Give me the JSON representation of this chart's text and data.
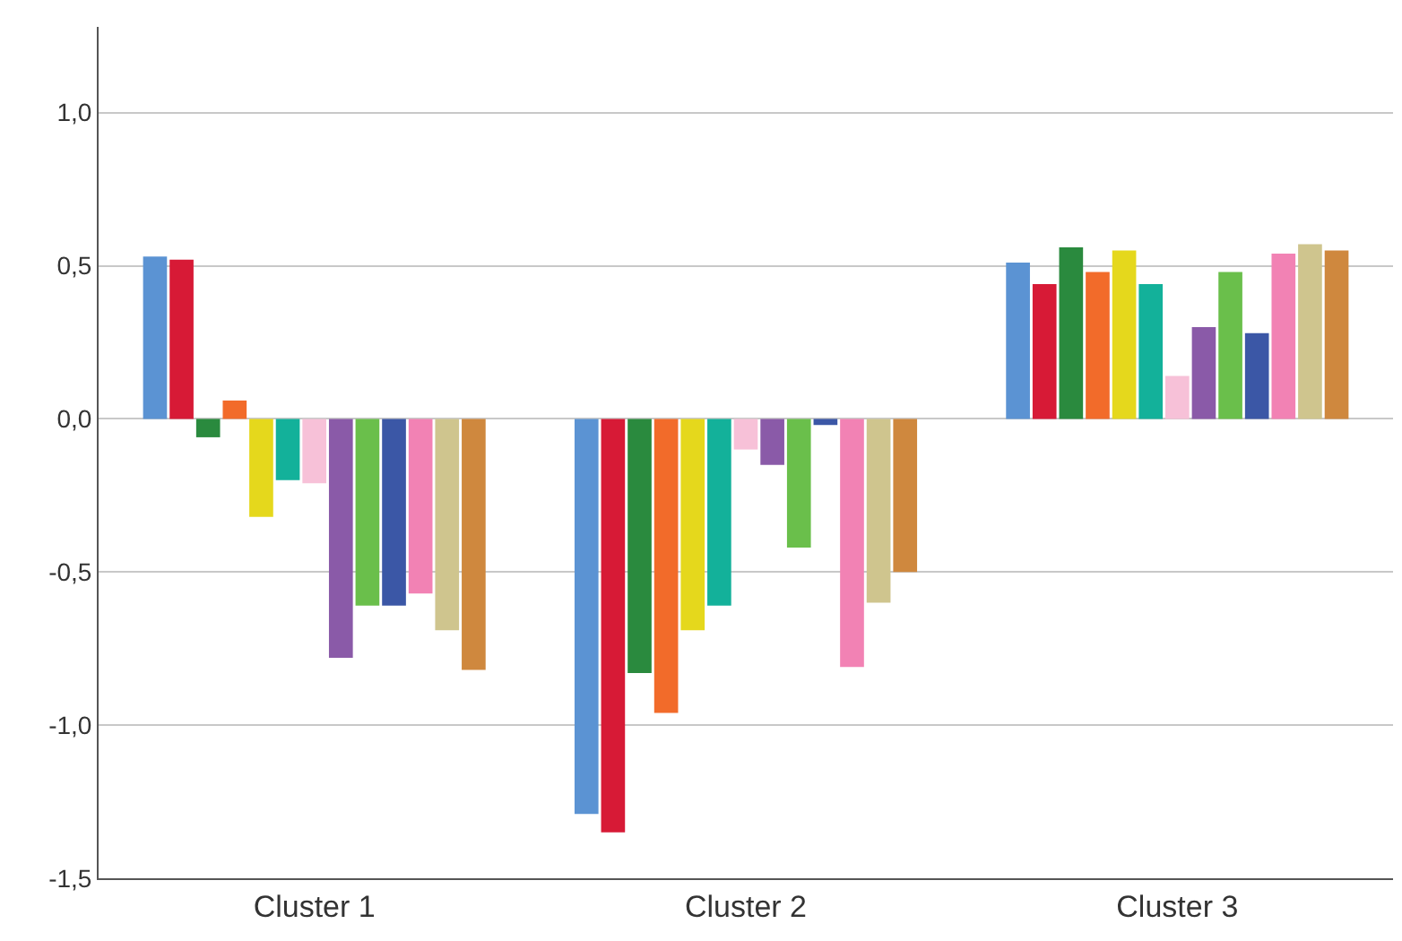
{
  "chart_data": {
    "type": "bar",
    "categories": [
      "Cluster 1",
      "Cluster 2",
      "Cluster 3"
    ],
    "series": [
      {
        "color": "#5b93d3",
        "values": [
          0.53,
          -1.29,
          0.51
        ]
      },
      {
        "color": "#d71a36",
        "values": [
          0.52,
          -1.35,
          0.44
        ]
      },
      {
        "color": "#2a8a3e",
        "values": [
          -0.06,
          -0.83,
          0.56
        ]
      },
      {
        "color": "#f26b2a",
        "values": [
          0.06,
          -0.96,
          0.48
        ]
      },
      {
        "color": "#e5d81c",
        "values": [
          -0.32,
          -0.69,
          0.55
        ]
      },
      {
        "color": "#13b19a",
        "values": [
          -0.2,
          -0.61,
          0.44
        ]
      },
      {
        "color": "#f7c1d8",
        "values": [
          -0.21,
          -0.1,
          0.14
        ]
      },
      {
        "color": "#8a5aa8",
        "values": [
          -0.78,
          -0.15,
          0.3
        ]
      },
      {
        "color": "#6abf4b",
        "values": [
          -0.61,
          -0.42,
          0.48
        ]
      },
      {
        "color": "#3b57a6",
        "values": [
          -0.61,
          -0.02,
          0.28
        ]
      },
      {
        "color": "#f282b4",
        "values": [
          -0.57,
          -0.81,
          0.54
        ]
      },
      {
        "color": "#cfc58e",
        "values": [
          -0.69,
          -0.6,
          0.57
        ]
      },
      {
        "color": "#cf883e",
        "values": [
          -0.82,
          -0.5,
          0.55
        ]
      }
    ],
    "ylim": [
      -1.5,
      1.28
    ],
    "yticks": [
      {
        "value": -1.5,
        "label": "-1,5"
      },
      {
        "value": -1.0,
        "label": "-1,0"
      },
      {
        "value": -0.5,
        "label": "-0,5"
      },
      {
        "value": 0,
        "label": "0,0"
      },
      {
        "value": 0.5,
        "label": "0,5"
      },
      {
        "value": 1.0,
        "label": "1,0"
      }
    ],
    "grid": "y"
  }
}
